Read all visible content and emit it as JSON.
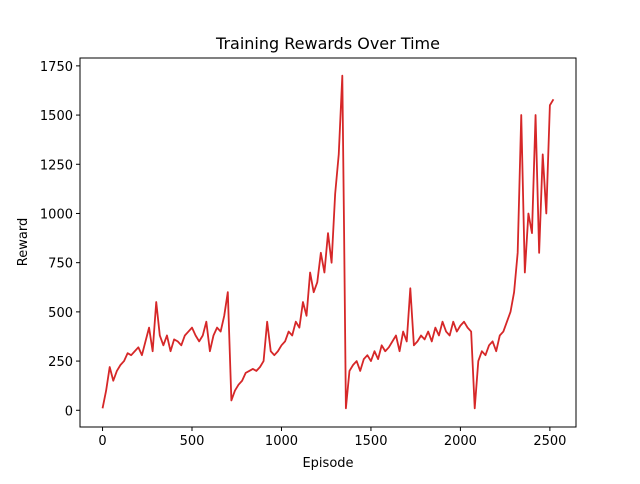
{
  "chart_data": {
    "type": "line",
    "title": "Training Rewards Over Time",
    "x_label": "Episode",
    "y_label": "Reward",
    "x": [
      0,
      20,
      40,
      60,
      80,
      100,
      120,
      140,
      160,
      180,
      200,
      220,
      240,
      260,
      280,
      300,
      320,
      340,
      360,
      380,
      400,
      420,
      440,
      460,
      480,
      500,
      520,
      540,
      560,
      580,
      600,
      620,
      640,
      660,
      680,
      700,
      720,
      740,
      760,
      780,
      800,
      820,
      840,
      860,
      880,
      900,
      920,
      940,
      960,
      980,
      1000,
      1020,
      1040,
      1060,
      1080,
      1100,
      1120,
      1140,
      1160,
      1180,
      1200,
      1220,
      1240,
      1260,
      1280,
      1300,
      1320,
      1340,
      1350,
      1360,
      1380,
      1400,
      1420,
      1440,
      1460,
      1480,
      1500,
      1520,
      1540,
      1560,
      1580,
      1600,
      1620,
      1640,
      1660,
      1680,
      1700,
      1720,
      1740,
      1760,
      1780,
      1800,
      1820,
      1840,
      1860,
      1880,
      1900,
      1920,
      1940,
      1960,
      1980,
      2000,
      2020,
      2040,
      2060,
      2080,
      2100,
      2120,
      2140,
      2160,
      2180,
      2200,
      2220,
      2240,
      2260,
      2280,
      2300,
      2320,
      2340,
      2360,
      2380,
      2400,
      2420,
      2440,
      2460,
      2480,
      2500,
      2520
    ],
    "series": [
      {
        "name": "Reward",
        "color": "#d62728",
        "values": [
          10,
          100,
          220,
          150,
          200,
          230,
          250,
          290,
          280,
          300,
          320,
          280,
          350,
          420,
          300,
          550,
          380,
          330,
          380,
          300,
          360,
          350,
          330,
          380,
          400,
          420,
          380,
          350,
          380,
          450,
          300,
          380,
          420,
          400,
          480,
          600,
          50,
          100,
          130,
          150,
          190,
          200,
          210,
          200,
          220,
          250,
          450,
          300,
          280,
          300,
          330,
          350,
          400,
          380,
          450,
          420,
          550,
          480,
          700,
          600,
          650,
          800,
          700,
          900,
          750,
          1100,
          1300,
          1700,
          900,
          10,
          200,
          230,
          250,
          200,
          260,
          280,
          250,
          300,
          260,
          330,
          300,
          320,
          350,
          380,
          300,
          400,
          350,
          620,
          330,
          350,
          380,
          360,
          400,
          350,
          420,
          380,
          450,
          400,
          380,
          450,
          400,
          430,
          450,
          420,
          400,
          10,
          250,
          300,
          280,
          330,
          350,
          300,
          380,
          400,
          450,
          500,
          600,
          800,
          1500,
          700,
          1000,
          900,
          1500,
          800,
          1300,
          1000,
          1550,
          1580
        ]
      }
    ],
    "xlim": [
      -126,
      2646
    ],
    "ylim": [
      -85,
      1790
    ],
    "xticks": [
      0,
      500,
      1000,
      1500,
      2000,
      2500
    ],
    "yticks": [
      0,
      250,
      500,
      750,
      1000,
      1250,
      1500,
      1750
    ]
  }
}
